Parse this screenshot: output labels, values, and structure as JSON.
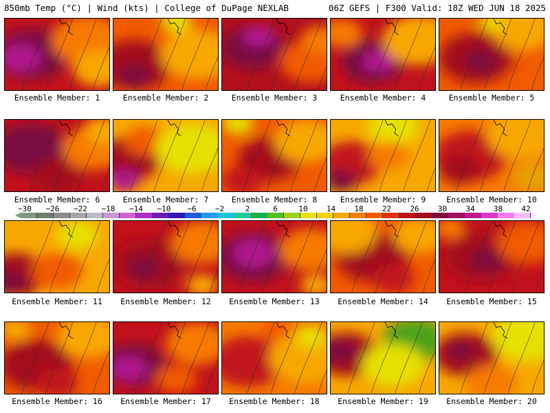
{
  "header": {
    "left": "850mb Temp (°C) | Wind (kts) | College of DuPage NEXLAB",
    "right": "06Z GEFS | F300 Valid: 18Z WED JUN 18 2025"
  },
  "panels": [
    {
      "label": "Ensemble Member: 1",
      "base": "#c1121b",
      "blobs": [
        [
          "#7a0f3f",
          0.25,
          0.5,
          0.35
        ],
        [
          "#b0128d",
          0.15,
          0.55,
          0.2
        ],
        [
          "#f67a00",
          0.8,
          0.3,
          0.35
        ],
        [
          "#f7a800",
          0.9,
          0.7,
          0.25
        ]
      ]
    },
    {
      "label": "Ensemble Member: 2",
      "base": "#f05a00",
      "blobs": [
        [
          "#a30d1d",
          0.2,
          0.65,
          0.35
        ],
        [
          "#7a0f3f",
          0.2,
          0.8,
          0.15
        ],
        [
          "#f7a800",
          0.8,
          0.5,
          0.35
        ],
        [
          "#e6e000",
          0.6,
          0.05,
          0.15
        ]
      ]
    },
    {
      "label": "Ensemble Member: 3",
      "base": "#b2101c",
      "blobs": [
        [
          "#7a0f3f",
          0.3,
          0.4,
          0.3
        ],
        [
          "#b0128d",
          0.35,
          0.25,
          0.15
        ],
        [
          "#f05a00",
          0.85,
          0.6,
          0.3
        ],
        [
          "#f67a00",
          0.95,
          0.3,
          0.2
        ]
      ]
    },
    {
      "label": "Ensemble Member: 4",
      "base": "#c1121b",
      "blobs": [
        [
          "#7a0f3f",
          0.4,
          0.6,
          0.3
        ],
        [
          "#b0128d",
          0.45,
          0.6,
          0.15
        ],
        [
          "#f7a800",
          0.85,
          0.3,
          0.35
        ],
        [
          "#f67a00",
          0.1,
          0.2,
          0.2
        ]
      ]
    },
    {
      "label": "Ensemble Member: 5",
      "base": "#f05a00",
      "blobs": [
        [
          "#a30d1d",
          0.35,
          0.55,
          0.35
        ],
        [
          "#7a0f3f",
          0.4,
          0.6,
          0.15
        ],
        [
          "#f7a800",
          0.8,
          0.15,
          0.3
        ],
        [
          "#e6e000",
          0.5,
          0.05,
          0.12
        ]
      ]
    },
    {
      "label": "Ensemble Member: 6",
      "base": "#c1121b",
      "blobs": [
        [
          "#7a0f3f",
          0.25,
          0.4,
          0.35
        ],
        [
          "#a30d1d",
          0.5,
          0.8,
          0.25
        ],
        [
          "#f67a00",
          0.85,
          0.4,
          0.3
        ],
        [
          "#f7a800",
          0.95,
          0.15,
          0.2
        ]
      ]
    },
    {
      "label": "Ensemble Member: 7",
      "base": "#f7a800",
      "blobs": [
        [
          "#a30d1d",
          0.15,
          0.55,
          0.3
        ],
        [
          "#b0128d",
          0.1,
          0.85,
          0.15
        ],
        [
          "#f05a00",
          0.3,
          0.3,
          0.2
        ],
        [
          "#e6e000",
          0.75,
          0.4,
          0.35
        ]
      ]
    },
    {
      "label": "Ensemble Member: 8",
      "base": "#f05a00",
      "blobs": [
        [
          "#a30d1d",
          0.45,
          0.55,
          0.3
        ],
        [
          "#f7a800",
          0.8,
          0.3,
          0.3
        ],
        [
          "#e6e000",
          0.15,
          0.05,
          0.15
        ],
        [
          "#c1121b",
          0.2,
          0.85,
          0.2
        ]
      ]
    },
    {
      "label": "Ensemble Member: 9",
      "base": "#f7a800",
      "blobs": [
        [
          "#c1121b",
          0.2,
          0.6,
          0.3
        ],
        [
          "#7a0f3f",
          0.1,
          0.85,
          0.15
        ],
        [
          "#e6e000",
          0.6,
          0.1,
          0.25
        ],
        [
          "#f67a00",
          0.55,
          0.5,
          0.2
        ]
      ]
    },
    {
      "label": "Ensemble Member: 10",
      "base": "#f67a00",
      "blobs": [
        [
          "#c1121b",
          0.3,
          0.5,
          0.35
        ],
        [
          "#a30d1d",
          0.2,
          0.7,
          0.2
        ],
        [
          "#f7a800",
          0.8,
          0.2,
          0.35
        ],
        [
          "#e6a000",
          0.9,
          0.8,
          0.2
        ]
      ]
    },
    {
      "label": "Ensemble Member: 11",
      "base": "#f7a800",
      "blobs": [
        [
          "#a30d1d",
          0.1,
          0.75,
          0.3
        ],
        [
          "#7a0f3f",
          0.05,
          0.85,
          0.15
        ],
        [
          "#f05a00",
          0.5,
          0.7,
          0.25
        ],
        [
          "#e6e000",
          0.7,
          0.2,
          0.2
        ]
      ]
    },
    {
      "label": "Ensemble Member: 12",
      "base": "#c1121b",
      "blobs": [
        [
          "#a30d1d",
          0.35,
          0.6,
          0.35
        ],
        [
          "#7a0f3f",
          0.3,
          0.65,
          0.15
        ],
        [
          "#f67a00",
          0.85,
          0.3,
          0.3
        ],
        [
          "#f7a800",
          0.85,
          0.9,
          0.15
        ]
      ]
    },
    {
      "label": "Ensemble Member: 13",
      "base": "#c1121b",
      "blobs": [
        [
          "#7a0f3f",
          0.3,
          0.5,
          0.35
        ],
        [
          "#b0128d",
          0.3,
          0.45,
          0.2
        ],
        [
          "#f67a00",
          0.85,
          0.4,
          0.3
        ],
        [
          "#f7a800",
          0.9,
          0.9,
          0.15
        ]
      ]
    },
    {
      "label": "Ensemble Member: 14",
      "base": "#f05a00",
      "blobs": [
        [
          "#a30d1d",
          0.4,
          0.5,
          0.35
        ],
        [
          "#f7a800",
          0.15,
          0.15,
          0.3
        ],
        [
          "#f7a800",
          0.85,
          0.2,
          0.25
        ],
        [
          "#c1121b",
          0.6,
          0.8,
          0.2
        ]
      ]
    },
    {
      "label": "Ensemble Member: 15",
      "base": "#c1121b",
      "blobs": [
        [
          "#a30d1d",
          0.4,
          0.5,
          0.35
        ],
        [
          "#7a0f3f",
          0.45,
          0.55,
          0.15
        ],
        [
          "#f05a00",
          0.85,
          0.3,
          0.3
        ],
        [
          "#f67a00",
          0.1,
          0.1,
          0.15
        ]
      ]
    },
    {
      "label": "Ensemble Member: 16",
      "base": "#f05a00",
      "blobs": [
        [
          "#a30d1d",
          0.3,
          0.6,
          0.35
        ],
        [
          "#f7a800",
          0.8,
          0.2,
          0.3
        ],
        [
          "#f7a800",
          0.1,
          0.1,
          0.15
        ],
        [
          "#c1121b",
          0.5,
          0.85,
          0.2
        ]
      ]
    },
    {
      "label": "Ensemble Member: 17",
      "base": "#c1121b",
      "blobs": [
        [
          "#7a0f3f",
          0.2,
          0.6,
          0.3
        ],
        [
          "#b0128d",
          0.15,
          0.65,
          0.18
        ],
        [
          "#f67a00",
          0.8,
          0.3,
          0.3
        ],
        [
          "#f05a00",
          0.6,
          0.8,
          0.2
        ]
      ]
    },
    {
      "label": "Ensemble Member: 18",
      "base": "#f67a00",
      "blobs": [
        [
          "#c1121b",
          0.25,
          0.55,
          0.35
        ],
        [
          "#f7a800",
          0.8,
          0.5,
          0.35
        ],
        [
          "#e6e000",
          0.85,
          0.2,
          0.15
        ],
        [
          "#f05a00",
          0.5,
          0.1,
          0.15
        ]
      ]
    },
    {
      "label": "Ensemble Member: 19",
      "base": "#f7a800",
      "blobs": [
        [
          "#a30d1d",
          0.15,
          0.45,
          0.3
        ],
        [
          "#7a0f3f",
          0.1,
          0.4,
          0.15
        ],
        [
          "#4ea21d",
          0.8,
          0.25,
          0.3
        ],
        [
          "#e6e000",
          0.6,
          0.6,
          0.3
        ]
      ]
    },
    {
      "label": "Ensemble Member: 20",
      "base": "#f7a800",
      "blobs": [
        [
          "#a30d1d",
          0.25,
          0.45,
          0.3
        ],
        [
          "#7a0f3f",
          0.2,
          0.4,
          0.12
        ],
        [
          "#e6e000",
          0.85,
          0.2,
          0.35
        ],
        [
          "#f67a00",
          0.5,
          0.85,
          0.25
        ]
      ]
    }
  ],
  "colorbar": {
    "tick_labels": [
      "−30",
      "−26",
      "−22",
      "−18",
      "−14",
      "−10",
      "−6",
      "−2",
      "2",
      "6",
      "10",
      "14",
      "18",
      "22",
      "26",
      "30",
      "34",
      "38",
      "42"
    ],
    "colors": [
      "#7f9a7f",
      "#6f7f6f",
      "#8c8c8c",
      "#a6a6a6",
      "#b9b9c8",
      "#c79ad6",
      "#d35fd6",
      "#b02dc3",
      "#6c1eb4",
      "#2f1bb3",
      "#1e5fd8",
      "#1e9be6",
      "#16c6dd",
      "#1fc99b",
      "#19b04a",
      "#52c01b",
      "#9fd21a",
      "#e6e000",
      "#f7d000",
      "#f7a800",
      "#f67a00",
      "#f05a00",
      "#e2310f",
      "#c1121b",
      "#a30d1d",
      "#7a0f3f",
      "#a1115f",
      "#c0178f",
      "#dd37c8",
      "#f27cf0",
      "#fdbcf9"
    ]
  }
}
